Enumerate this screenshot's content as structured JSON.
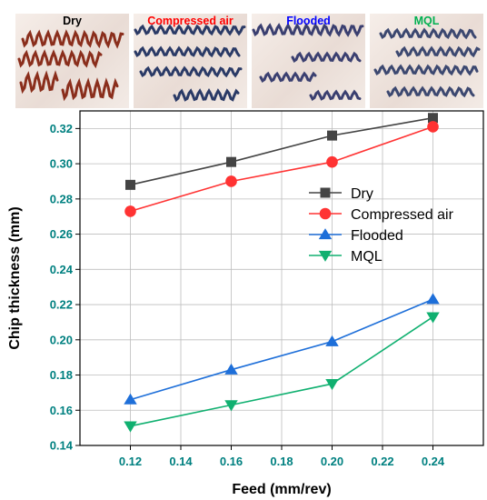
{
  "panels": [
    {
      "label": "Dry",
      "color": "#000000",
      "chip_color": "#8a2e1c"
    },
    {
      "label": "Compressed air",
      "color": "#ff0000",
      "chip_color": "#2a3a66"
    },
    {
      "label": "Flooded",
      "color": "#0000ff",
      "chip_color": "#3a3f70"
    },
    {
      "label": "MQL",
      "color": "#00b050",
      "chip_color": "#3c4870"
    }
  ],
  "chart_data": {
    "type": "line",
    "xlabel": "Feed (mm/rev)",
    "ylabel": "Chip thickness (mm)",
    "x": [
      0.12,
      0.16,
      0.2,
      0.24
    ],
    "xlim": [
      0.1,
      0.26
    ],
    "ylim": [
      0.14,
      0.33
    ],
    "xticks": [
      "0.12",
      "0.14",
      "0.16",
      "0.18",
      "0.20",
      "0.22",
      "0.24"
    ],
    "yticks": [
      "0.14",
      "0.16",
      "0.18",
      "0.20",
      "0.22",
      "0.24",
      "0.26",
      "0.28",
      "0.30",
      "0.32"
    ],
    "grid": true,
    "legend_position": "right",
    "series": [
      {
        "name": "Dry",
        "color": "#444444",
        "marker": "square",
        "values": [
          0.288,
          0.301,
          0.316,
          0.326
        ]
      },
      {
        "name": "Compressed air",
        "color": "#ff3333",
        "marker": "circle",
        "values": [
          0.273,
          0.29,
          0.301,
          0.321
        ]
      },
      {
        "name": "Flooded",
        "color": "#1e6fd9",
        "marker": "triangle-up",
        "values": [
          0.166,
          0.183,
          0.199,
          0.223
        ]
      },
      {
        "name": "MQL",
        "color": "#10b070",
        "marker": "triangle-down",
        "values": [
          0.151,
          0.163,
          0.175,
          0.213
        ]
      }
    ]
  }
}
